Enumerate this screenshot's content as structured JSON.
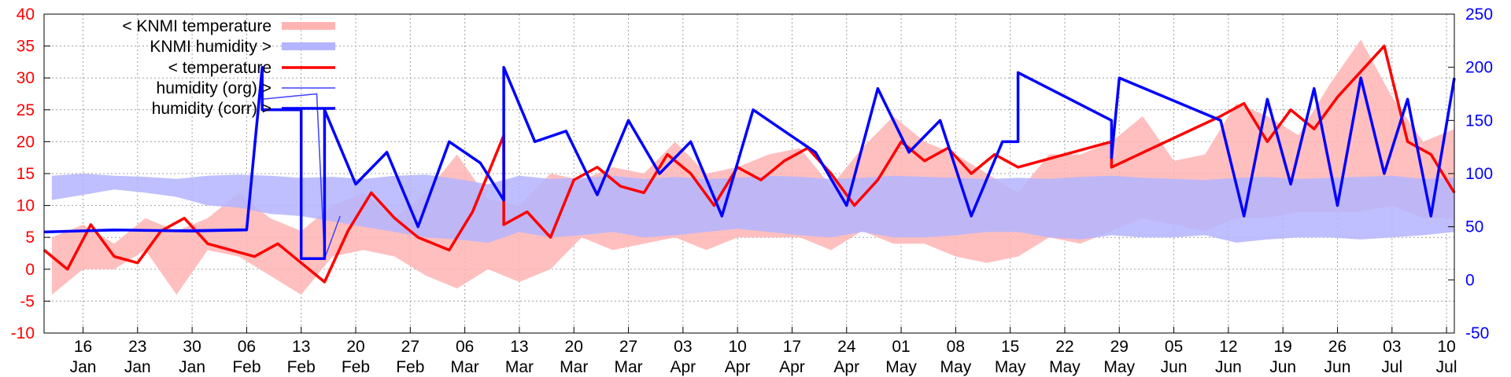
{
  "chart_data": {
    "type": "line",
    "title": "",
    "xlabel": "",
    "ylabel": "",
    "y2label": "",
    "grid": true,
    "legend_position": "top-left",
    "ylim": [
      -10,
      40
    ],
    "y2lim": [
      -50,
      250
    ],
    "yticks": [
      "40",
      "35",
      "30",
      "25",
      "20",
      "15",
      "10",
      "5",
      "0",
      "-5",
      "-10"
    ],
    "y2ticks": [
      "250",
      "200",
      "150",
      "100",
      "50",
      "0",
      "-50"
    ],
    "xticks": [
      {
        "day": "16",
        "month": "Jan"
      },
      {
        "day": "23",
        "month": "Jan"
      },
      {
        "day": "30",
        "month": "Jan"
      },
      {
        "day": "06",
        "month": "Feb"
      },
      {
        "day": "13",
        "month": "Feb"
      },
      {
        "day": "20",
        "month": "Feb"
      },
      {
        "day": "27",
        "month": "Feb"
      },
      {
        "day": "06",
        "month": "Mar"
      },
      {
        "day": "13",
        "month": "Mar"
      },
      {
        "day": "20",
        "month": "Mar"
      },
      {
        "day": "27",
        "month": "Mar"
      },
      {
        "day": "03",
        "month": "Apr"
      },
      {
        "day": "10",
        "month": "Apr"
      },
      {
        "day": "17",
        "month": "Apr"
      },
      {
        "day": "24",
        "month": "Apr"
      },
      {
        "day": "01",
        "month": "May"
      },
      {
        "day": "08",
        "month": "May"
      },
      {
        "day": "15",
        "month": "May"
      },
      {
        "day": "22",
        "month": "May"
      },
      {
        "day": "29",
        "month": "May"
      },
      {
        "day": "05",
        "month": "Jun"
      },
      {
        "day": "12",
        "month": "Jun"
      },
      {
        "day": "19",
        "month": "Jun"
      },
      {
        "day": "26",
        "month": "Jun"
      },
      {
        "day": "03",
        "month": "Jul"
      },
      {
        "day": "10",
        "month": "Jul"
      }
    ],
    "x_range": [
      "2020-01-11",
      "2020-07-10"
    ],
    "series": [
      {
        "name": "< KNMI temperature",
        "axis": "left",
        "color": "#ffb4b4",
        "style": "band",
        "x": [
          "2020-01-12",
          "2020-01-16",
          "2020-01-20",
          "2020-01-24",
          "2020-01-28",
          "2020-02-01",
          "2020-02-05",
          "2020-02-09",
          "2020-02-13",
          "2020-02-17",
          "2020-02-21",
          "2020-02-25",
          "2020-02-29",
          "2020-03-04",
          "2020-03-08",
          "2020-03-12",
          "2020-03-16",
          "2020-03-20",
          "2020-03-24",
          "2020-03-28",
          "2020-04-01",
          "2020-04-05",
          "2020-04-09",
          "2020-04-13",
          "2020-04-17",
          "2020-04-21",
          "2020-04-25",
          "2020-04-29",
          "2020-05-03",
          "2020-05-07",
          "2020-05-11",
          "2020-05-15",
          "2020-05-19",
          "2020-05-23",
          "2020-05-27",
          "2020-05-31",
          "2020-06-04",
          "2020-06-08",
          "2020-06-12",
          "2020-06-16",
          "2020-06-20",
          "2020-06-24",
          "2020-06-28",
          "2020-07-02",
          "2020-07-06",
          "2020-07-10"
        ],
        "low": [
          -4,
          0,
          0,
          3,
          -4,
          3,
          2,
          -1,
          -4,
          2,
          3,
          2,
          -1,
          -3,
          0,
          -2,
          0,
          5,
          3,
          4,
          5,
          3,
          5,
          5,
          5,
          3,
          6,
          4,
          4,
          2,
          1,
          2,
          5,
          4,
          6,
          8,
          7,
          6,
          8,
          8,
          9,
          9,
          9,
          10,
          8,
          8
        ],
        "high": [
          5,
          7,
          4,
          8,
          6,
          8,
          12,
          8,
          6,
          10,
          12,
          8,
          12,
          18,
          11,
          10,
          15,
          14,
          16,
          15,
          20,
          15,
          16,
          18,
          19,
          13,
          19,
          24,
          20,
          18,
          15,
          12,
          18,
          18,
          20,
          24,
          17,
          18,
          26,
          24,
          21,
          29,
          36,
          27,
          20,
          22
        ]
      },
      {
        "name": "KNMI humidity >",
        "axis": "right",
        "color": "#b4b4ff",
        "style": "band",
        "x": [
          "2020-01-12",
          "2020-01-16",
          "2020-01-20",
          "2020-01-24",
          "2020-01-28",
          "2020-02-01",
          "2020-02-05",
          "2020-02-09",
          "2020-02-13",
          "2020-02-17",
          "2020-02-21",
          "2020-02-25",
          "2020-02-29",
          "2020-03-04",
          "2020-03-08",
          "2020-03-12",
          "2020-03-16",
          "2020-03-20",
          "2020-03-24",
          "2020-03-28",
          "2020-04-01",
          "2020-04-05",
          "2020-04-09",
          "2020-04-13",
          "2020-04-17",
          "2020-04-21",
          "2020-04-25",
          "2020-04-29",
          "2020-05-03",
          "2020-05-07",
          "2020-05-11",
          "2020-05-15",
          "2020-05-19",
          "2020-05-23",
          "2020-05-27",
          "2020-05-31",
          "2020-06-04",
          "2020-06-08",
          "2020-06-12",
          "2020-06-16",
          "2020-06-20",
          "2020-06-24",
          "2020-06-28",
          "2020-07-02",
          "2020-07-06",
          "2020-07-10"
        ],
        "low": [
          75,
          80,
          85,
          82,
          78,
          70,
          68,
          62,
          60,
          55,
          50,
          45,
          40,
          38,
          35,
          45,
          40,
          42,
          45,
          40,
          42,
          45,
          48,
          45,
          42,
          40,
          45,
          40,
          40,
          42,
          45,
          45,
          40,
          38,
          42,
          40,
          40,
          42,
          35,
          38,
          40,
          40,
          38,
          40,
          42,
          45
        ],
        "high": [
          98,
          100,
          98,
          97,
          95,
          98,
          99,
          98,
          96,
          97,
          95,
          98,
          99,
          95,
          90,
          98,
          95,
          96,
          98,
          95,
          97,
          95,
          96,
          98,
          97,
          95,
          96,
          98,
          97,
          96,
          95,
          96,
          95,
          97,
          98,
          96,
          95,
          94,
          96,
          97,
          95,
          96,
          97,
          98,
          95,
          96
        ]
      },
      {
        "name": "< temperature",
        "axis": "left",
        "color": "#ff0000",
        "style": "line",
        "x": [
          "2020-01-11",
          "2020-01-14",
          "2020-01-17",
          "2020-01-20",
          "2020-01-23",
          "2020-01-26",
          "2020-01-29",
          "2020-02-01",
          "2020-02-04",
          "2020-02-07",
          "2020-02-10",
          "2020-02-13",
          "2020-02-16",
          "2020-02-19",
          "2020-02-22",
          "2020-02-25",
          "2020-02-28",
          "2020-03-03",
          "2020-03-06",
          "2020-03-10",
          "2020-03-10",
          "2020-03-13",
          "2020-03-16",
          "2020-03-19",
          "2020-03-22",
          "2020-03-25",
          "2020-03-28",
          "2020-03-31",
          "2020-04-03",
          "2020-04-06",
          "2020-04-09",
          "2020-04-12",
          "2020-04-15",
          "2020-04-18",
          "2020-04-21",
          "2020-04-24",
          "2020-04-27",
          "2020-04-30",
          "2020-05-03",
          "2020-05-06",
          "2020-05-09",
          "2020-05-12",
          "2020-05-15",
          "2020-05-27",
          "2020-05-27",
          "2020-06-10",
          "2020-06-13",
          "2020-06-16",
          "2020-06-19",
          "2020-06-22",
          "2020-06-25",
          "2020-06-28",
          "2020-07-01",
          "2020-07-04",
          "2020-07-07",
          "2020-07-10"
        ],
        "y": [
          3,
          0,
          7,
          2,
          1,
          6,
          8,
          4,
          3,
          2,
          4,
          1,
          -2,
          6,
          12,
          8,
          5,
          3,
          9,
          21,
          7,
          9,
          5,
          14,
          16,
          13,
          12,
          18,
          15,
          10,
          16,
          14,
          17,
          19,
          15,
          10,
          14,
          20,
          17,
          19,
          15,
          18,
          16,
          20,
          16,
          24,
          26,
          20,
          25,
          22,
          27,
          31,
          35,
          20,
          18,
          12
        ]
      },
      {
        "name": "humidity (org) >",
        "axis": "right",
        "color": "#4040ff",
        "style": "line-thin",
        "x": [
          "2020-01-11",
          "2020-02-06",
          "2020-02-08",
          "2020-02-08",
          "2020-02-15",
          "2020-02-16",
          "2020-02-18"
        ],
        "y": [
          45,
          48,
          190,
          170,
          175,
          20,
          60
        ]
      },
      {
        "name": "humidity (corr) >",
        "axis": "right",
        "color": "#0000ff",
        "style": "line",
        "x": [
          "2020-01-11",
          "2020-01-20",
          "2020-01-30",
          "2020-02-06",
          "2020-02-08",
          "2020-02-08",
          "2020-02-10",
          "2020-02-13",
          "2020-02-13",
          "2020-02-16",
          "2020-02-16",
          "2020-02-20",
          "2020-02-24",
          "2020-02-28",
          "2020-03-03",
          "2020-03-07",
          "2020-03-10",
          "2020-03-10",
          "2020-03-14",
          "2020-03-18",
          "2020-03-22",
          "2020-03-26",
          "2020-03-30",
          "2020-04-03",
          "2020-04-07",
          "2020-04-11",
          "2020-04-15",
          "2020-04-19",
          "2020-04-23",
          "2020-04-27",
          "2020-05-01",
          "2020-05-05",
          "2020-05-09",
          "2020-05-13",
          "2020-05-15",
          "2020-05-15",
          "2020-05-27",
          "2020-05-27",
          "2020-05-28",
          "2020-06-10",
          "2020-06-13",
          "2020-06-16",
          "2020-06-19",
          "2020-06-22",
          "2020-06-25",
          "2020-06-28",
          "2020-07-01",
          "2020-07-04",
          "2020-07-07",
          "2020-07-10"
        ],
        "y": [
          45,
          47,
          46,
          47,
          200,
          160,
          160,
          160,
          20,
          20,
          160,
          90,
          120,
          50,
          130,
          110,
          75,
          200,
          130,
          140,
          80,
          150,
          100,
          130,
          60,
          160,
          140,
          120,
          70,
          180,
          120,
          150,
          60,
          130,
          130,
          195,
          150,
          115,
          190,
          150,
          60,
          170,
          90,
          180,
          70,
          190,
          100,
          170,
          60,
          190
        ]
      }
    ]
  }
}
